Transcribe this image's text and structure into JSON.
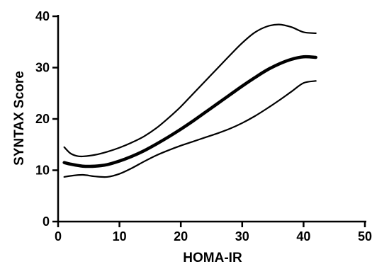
{
  "chart_data": {
    "type": "line",
    "title": "",
    "xlabel": "HOMA-IR",
    "ylabel": "SYNTAX Score",
    "xlim": [
      0,
      50
    ],
    "ylim": [
      0,
      40
    ],
    "xticks": [
      0,
      10,
      20,
      30,
      40,
      50
    ],
    "yticks": [
      0,
      10,
      20,
      30,
      40
    ],
    "grid": false,
    "legend": "none",
    "colors": {
      "line": "#000000",
      "axis": "#000000",
      "background": "#ffffff"
    },
    "series": [
      {
        "role": "fit",
        "x": [
          1,
          2,
          4,
          6,
          8,
          10,
          12,
          14,
          16,
          18,
          20,
          22,
          24,
          26,
          28,
          30,
          32,
          34,
          36,
          38,
          40,
          42
        ],
        "y": [
          11.5,
          11.2,
          10.8,
          10.8,
          11.1,
          11.8,
          12.7,
          13.8,
          15.1,
          16.5,
          18.0,
          19.6,
          21.3,
          23.0,
          24.7,
          26.4,
          28.0,
          29.5,
          30.7,
          31.6,
          32.1,
          32.0
        ]
      },
      {
        "role": "upper",
        "x": [
          1,
          2,
          3,
          4,
          6,
          8,
          10,
          12,
          14,
          16,
          18,
          20,
          22,
          24,
          26,
          28,
          30,
          32,
          34,
          36,
          38,
          40,
          42
        ],
        "y": [
          14.5,
          13.3,
          12.8,
          12.7,
          13.0,
          13.6,
          14.4,
          15.4,
          16.6,
          18.2,
          20.2,
          22.4,
          24.9,
          27.4,
          29.9,
          32.4,
          34.8,
          36.8,
          38.0,
          38.4,
          37.9,
          36.9,
          36.7
        ]
      },
      {
        "role": "lower",
        "x": [
          1,
          2,
          4,
          6,
          8,
          10,
          12,
          14,
          16,
          18,
          20,
          22,
          24,
          26,
          28,
          30,
          32,
          34,
          36,
          38,
          40,
          42
        ],
        "y": [
          8.7,
          8.9,
          9.1,
          8.8,
          8.7,
          9.3,
          10.4,
          11.7,
          12.9,
          13.9,
          14.8,
          15.6,
          16.4,
          17.2,
          18.1,
          19.2,
          20.5,
          22.0,
          23.6,
          25.3,
          27.0,
          27.4
        ]
      }
    ]
  }
}
